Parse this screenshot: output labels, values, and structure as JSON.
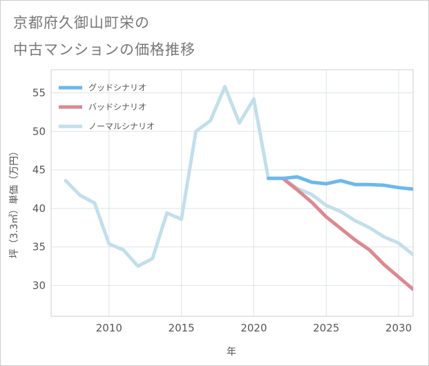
{
  "title_lines": [
    "京都府久御山町栄の",
    "中古マンションの価格推移"
  ],
  "chart_data": {
    "type": "line",
    "xlabel": "年",
    "ylabel": "坪（3.3㎡）単価（万円）",
    "xlim": [
      2006,
      2031
    ],
    "ylim": [
      26,
      58
    ],
    "xticks": [
      2010,
      2015,
      2020,
      2025,
      2030
    ],
    "yticks": [
      30,
      35,
      40,
      45,
      50,
      55
    ],
    "grid": true,
    "legend_position": "top-left",
    "series": [
      {
        "name": "ノーマルシナリオ",
        "color": "#c2dfeb",
        "points": [
          [
            2007,
            43.6
          ],
          [
            2008,
            41.7
          ],
          [
            2009,
            40.7
          ],
          [
            2010,
            35.4
          ],
          [
            2011,
            34.6
          ],
          [
            2012,
            32.5
          ],
          [
            2013,
            33.5
          ],
          [
            2014,
            39.4
          ],
          [
            2015,
            38.6
          ],
          [
            2016,
            50.0
          ],
          [
            2017,
            51.4
          ],
          [
            2018,
            55.8
          ],
          [
            2019,
            51.1
          ],
          [
            2020,
            54.2
          ],
          [
            2021,
            43.9
          ],
          [
            2022,
            43.9
          ],
          [
            2023,
            42.6
          ],
          [
            2024,
            41.8
          ],
          [
            2025,
            40.4
          ],
          [
            2026,
            39.6
          ],
          [
            2027,
            38.4
          ],
          [
            2028,
            37.5
          ],
          [
            2029,
            36.3
          ],
          [
            2030,
            35.5
          ],
          [
            2031,
            34.0
          ]
        ]
      },
      {
        "name": "バッドシナリオ",
        "color": "#dd8890",
        "points": [
          [
            2022,
            43.9
          ],
          [
            2023,
            42.4
          ],
          [
            2024,
            40.8
          ],
          [
            2025,
            38.9
          ],
          [
            2026,
            37.4
          ],
          [
            2027,
            35.9
          ],
          [
            2028,
            34.6
          ],
          [
            2029,
            32.7
          ],
          [
            2030,
            31.1
          ],
          [
            2031,
            29.5
          ]
        ]
      },
      {
        "name": "グッドシナリオ",
        "color": "#6cb8ec",
        "points": [
          [
            2021,
            43.9
          ],
          [
            2022,
            43.9
          ],
          [
            2023,
            44.1
          ],
          [
            2024,
            43.4
          ],
          [
            2025,
            43.2
          ],
          [
            2026,
            43.6
          ],
          [
            2027,
            43.1
          ],
          [
            2028,
            43.1
          ],
          [
            2029,
            43.0
          ],
          [
            2030,
            42.7
          ],
          [
            2031,
            42.5
          ]
        ]
      }
    ],
    "legend": [
      {
        "label": "グッドシナリオ",
        "color": "#6cb8ec"
      },
      {
        "label": "バッドシナリオ",
        "color": "#dd8890"
      },
      {
        "label": "ノーマルシナリオ",
        "color": "#c2dfeb"
      }
    ]
  }
}
